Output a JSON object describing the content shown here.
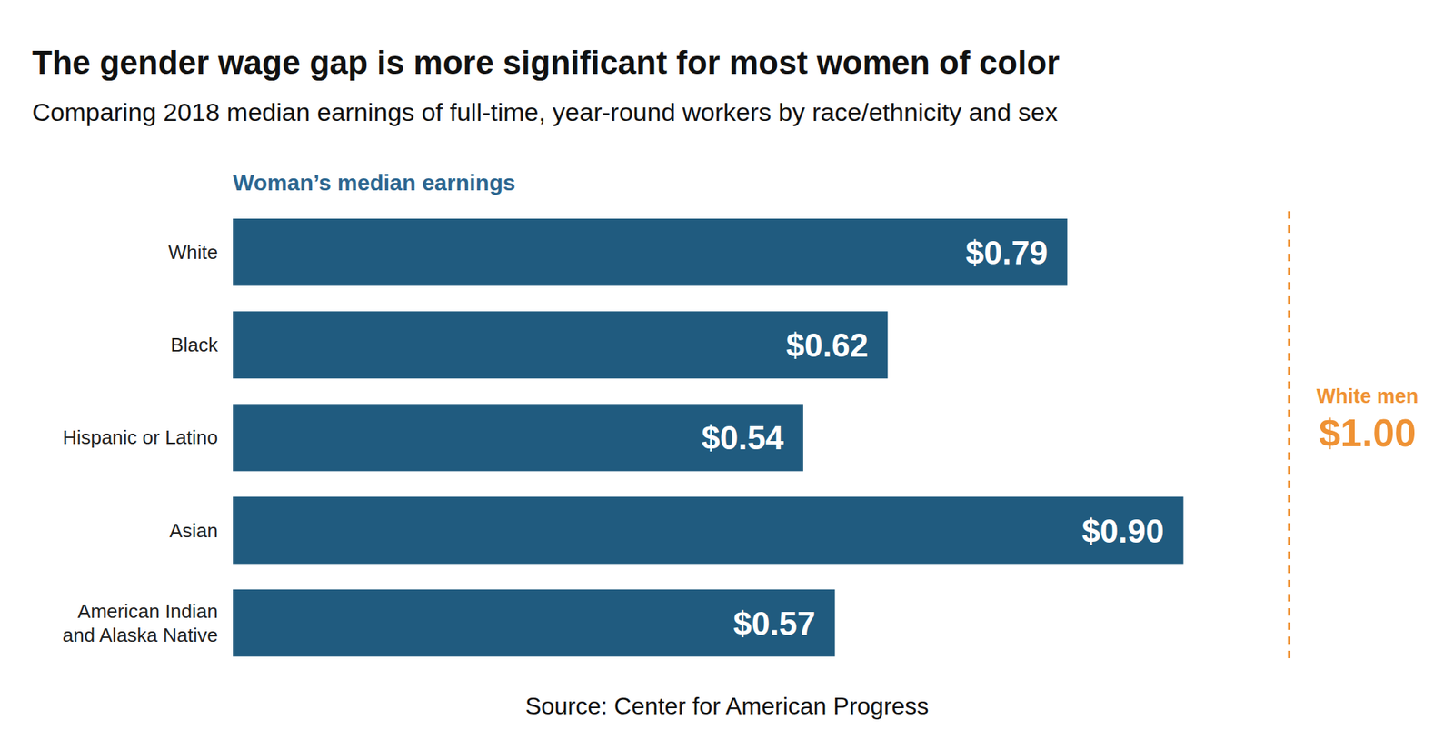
{
  "chart_data": {
    "type": "bar",
    "orientation": "horizontal",
    "title": "The gender wage gap is more significant for most women of color",
    "subtitle": "Comparing 2018 median earnings of full-time, year-round workers by race/ethnicity and sex",
    "categories": [
      "White",
      "Black",
      "Hispanic or Latino",
      "Asian",
      "American Indian and Alaska Native"
    ],
    "series": [
      {
        "name": "Woman’s median earnings",
        "color": "#205b7f",
        "values": [
          0.79,
          0.62,
          0.54,
          0.9,
          0.57
        ],
        "value_labels": [
          "$0.79",
          "$0.62",
          "$0.54",
          "$0.90",
          "$0.57"
        ]
      }
    ],
    "reference": {
      "label": "White men",
      "value": 1.0,
      "value_label": "$1.00",
      "color": "#ef9234"
    },
    "xlim": [
      0,
      1.0
    ],
    "tick_labels": false,
    "grid": false,
    "data_labels": true,
    "source": "Source: Center for American Progress"
  }
}
